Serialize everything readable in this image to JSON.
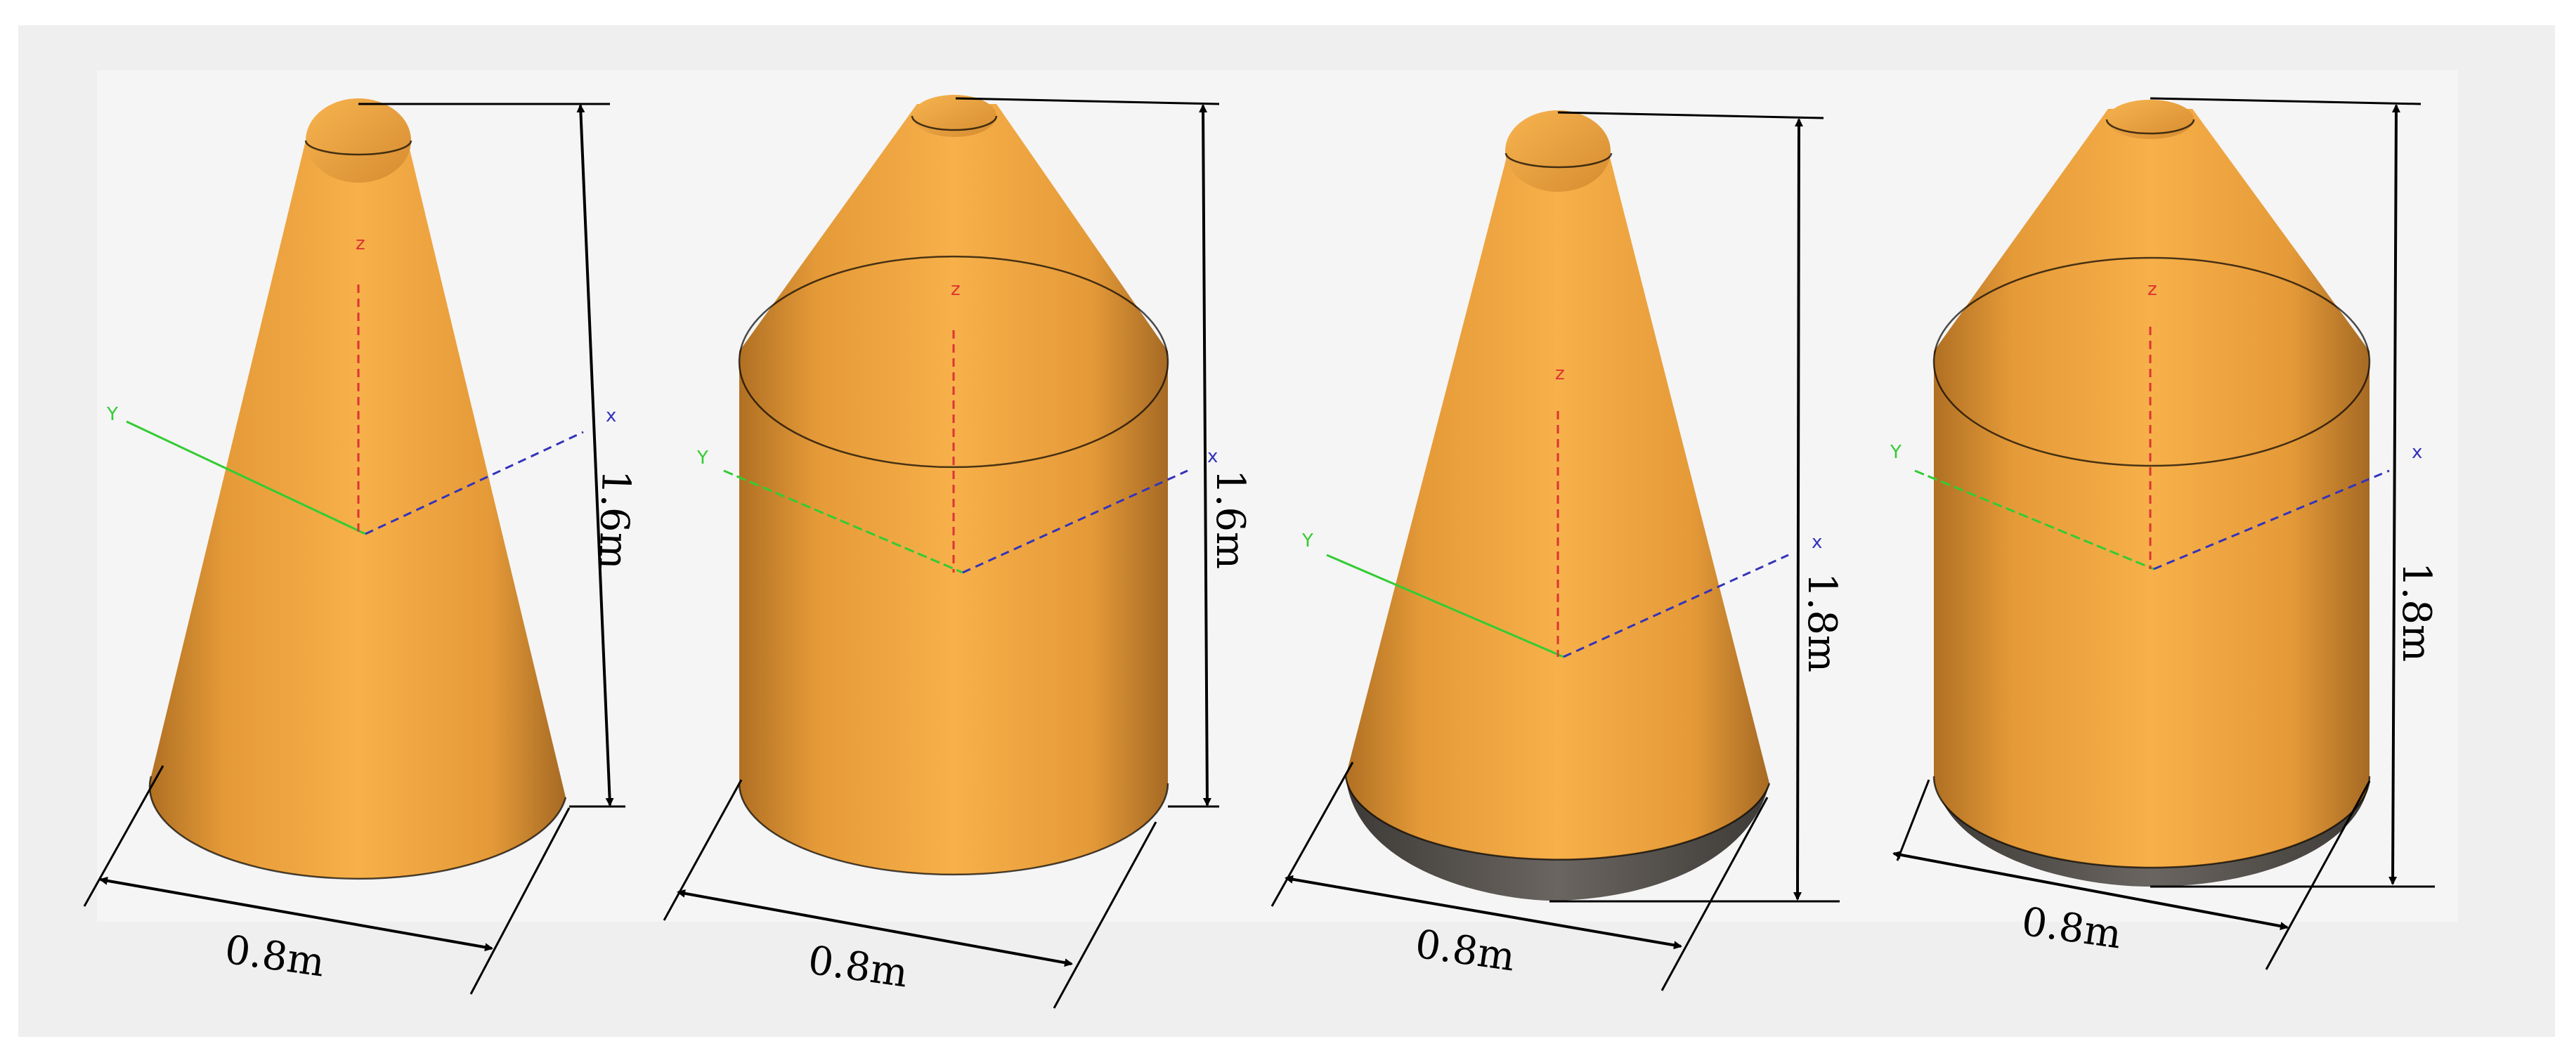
{
  "colors": {
    "body": "#f5ad45",
    "shade": "#b9792a",
    "bottom": "#4a4540",
    "axis_x": "#3333bb",
    "axis_y": "#33cc33",
    "axis_z": "#dd3333",
    "panel": "#f5f5f5",
    "frame": "#efefef"
  },
  "axes": {
    "x": "x",
    "y": "Y",
    "z": "z"
  },
  "models": [
    {
      "shape": "cone",
      "base": "flat",
      "height_label": "1.6m",
      "diameter_label": "0.8m"
    },
    {
      "shape": "cylinder-cone",
      "base": "flat",
      "height_label": "1.6m",
      "diameter_label": "0.8m"
    },
    {
      "shape": "cone",
      "base": "hemispherical",
      "height_label": "1.8m",
      "diameter_label": "0.8m"
    },
    {
      "shape": "cylinder-cone",
      "base": "hemispherical",
      "height_label": "1.8m",
      "diameter_label": "0.8m"
    }
  ]
}
